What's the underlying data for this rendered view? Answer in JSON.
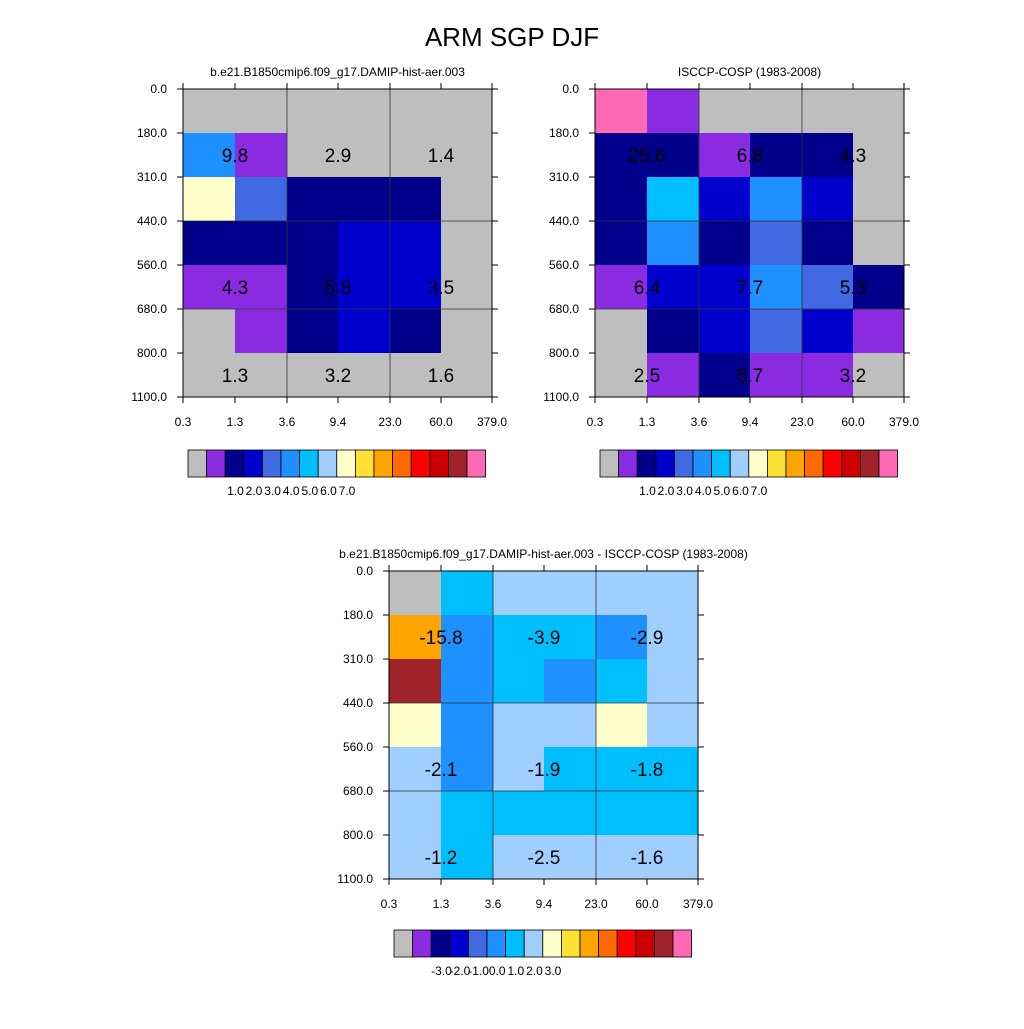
{
  "title": "ARM SGP DJF",
  "x_ticks": [
    "0.3",
    "1.3",
    "3.6",
    "9.4",
    "23.0",
    "60.0",
    "379.0"
  ],
  "y_ticks": [
    "0.0",
    "180.0",
    "310.0",
    "440.0",
    "560.0",
    "680.0",
    "800.0",
    "1100.0"
  ],
  "colormap": [
    "#bebebe",
    "#8a2be2",
    "#00008b",
    "#0000cd",
    "#4169e1",
    "#1e90ff",
    "#00bfff",
    "#a0cfff",
    "#ffffcc",
    "#ffe135",
    "#ffa500",
    "#ff6a00",
    "#ff0000",
    "#cd0000",
    "#a0222a",
    "#ff69b4"
  ],
  "chart_data": [
    {
      "type": "heatmap",
      "title": "b.e21.B1850cmip6.f09_g17.DAMIP-hist-aer.003",
      "cells": [
        [
          0,
          0,
          0,
          0,
          0,
          0
        ],
        [
          5,
          1,
          0,
          0,
          0,
          0
        ],
        [
          8,
          4,
          2,
          2,
          2,
          0
        ],
        [
          2,
          2,
          2,
          3,
          3,
          0
        ],
        [
          1,
          1,
          2,
          3,
          3,
          0
        ],
        [
          0,
          1,
          2,
          3,
          2,
          0
        ],
        [
          0,
          0,
          0,
          0,
          0,
          0
        ]
      ],
      "annotations": [
        {
          "label": "9.8",
          "row": 1,
          "col": 1
        },
        {
          "label": "2.9",
          "row": 1,
          "col": 3
        },
        {
          "label": "1.4",
          "row": 1,
          "col": 5
        },
        {
          "label": "4.3",
          "row": 4,
          "col": 1
        },
        {
          "label": "5.8",
          "row": 4,
          "col": 3
        },
        {
          "label": "3.5",
          "row": 4,
          "col": 5
        },
        {
          "label": "1.3",
          "row": 6,
          "col": 1
        },
        {
          "label": "3.2",
          "row": 6,
          "col": 3
        },
        {
          "label": "1.6",
          "row": 6,
          "col": 5
        }
      ],
      "colorbar_labels": [
        "1.0",
        "2.0",
        "3.0",
        "4.0",
        "5.0",
        "6.0",
        "7.0"
      ]
    },
    {
      "type": "heatmap",
      "title": "ISCCP-COSP (1983-2008)",
      "cells": [
        [
          15,
          1,
          0,
          0,
          0,
          0
        ],
        [
          2,
          2,
          1,
          2,
          2,
          0
        ],
        [
          2,
          6,
          3,
          5,
          3,
          0
        ],
        [
          2,
          5,
          2,
          4,
          2,
          0
        ],
        [
          1,
          3,
          3,
          5,
          4,
          2
        ],
        [
          0,
          2,
          3,
          4,
          3,
          1
        ],
        [
          0,
          1,
          2,
          1,
          1,
          0
        ]
      ],
      "annotations": [
        {
          "label": "25.6",
          "row": 1,
          "col": 1
        },
        {
          "label": "6.8",
          "row": 1,
          "col": 3
        },
        {
          "label": "4.3",
          "row": 1,
          "col": 5
        },
        {
          "label": "6.4",
          "row": 4,
          "col": 1
        },
        {
          "label": "7.7",
          "row": 4,
          "col": 3
        },
        {
          "label": "5.3",
          "row": 4,
          "col": 5
        },
        {
          "label": "2.5",
          "row": 6,
          "col": 1
        },
        {
          "label": "5.7",
          "row": 6,
          "col": 3
        },
        {
          "label": "3.2",
          "row": 6,
          "col": 5
        }
      ],
      "colorbar_labels": [
        "1.0",
        "2.0",
        "3.0",
        "4.0",
        "5.0",
        "6.0",
        "7.0"
      ]
    },
    {
      "type": "heatmap",
      "title": "b.e21.B1850cmip6.f09_g17.DAMIP-hist-aer.003 - ISCCP-COSP (1983-2008)",
      "cells": [
        [
          0,
          6,
          7,
          7,
          7,
          7
        ],
        [
          10,
          5,
          6,
          6,
          5,
          7
        ],
        [
          14,
          5,
          6,
          5,
          6,
          7
        ],
        [
          8,
          5,
          7,
          7,
          8,
          7
        ],
        [
          7,
          5,
          7,
          6,
          6,
          6
        ],
        [
          7,
          6,
          6,
          6,
          6,
          6
        ],
        [
          7,
          6,
          7,
          7,
          7,
          7
        ]
      ],
      "annotations": [
        {
          "label": "-15.8",
          "row": 1,
          "col": 1
        },
        {
          "label": "-3.9",
          "row": 1,
          "col": 3
        },
        {
          "label": "-2.9",
          "row": 1,
          "col": 5
        },
        {
          "label": "-2.1",
          "row": 4,
          "col": 1
        },
        {
          "label": "-1.9",
          "row": 4,
          "col": 3
        },
        {
          "label": "-1.8",
          "row": 4,
          "col": 5
        },
        {
          "label": "-1.2",
          "row": 6,
          "col": 1
        },
        {
          "label": "-2.5",
          "row": 6,
          "col": 3
        },
        {
          "label": "-1.6",
          "row": 6,
          "col": 5
        }
      ],
      "colorbar_labels": [
        "-3.0",
        "-2.0",
        "-1.0",
        "0.0",
        "1.0",
        "2.0",
        "3.0"
      ]
    }
  ]
}
